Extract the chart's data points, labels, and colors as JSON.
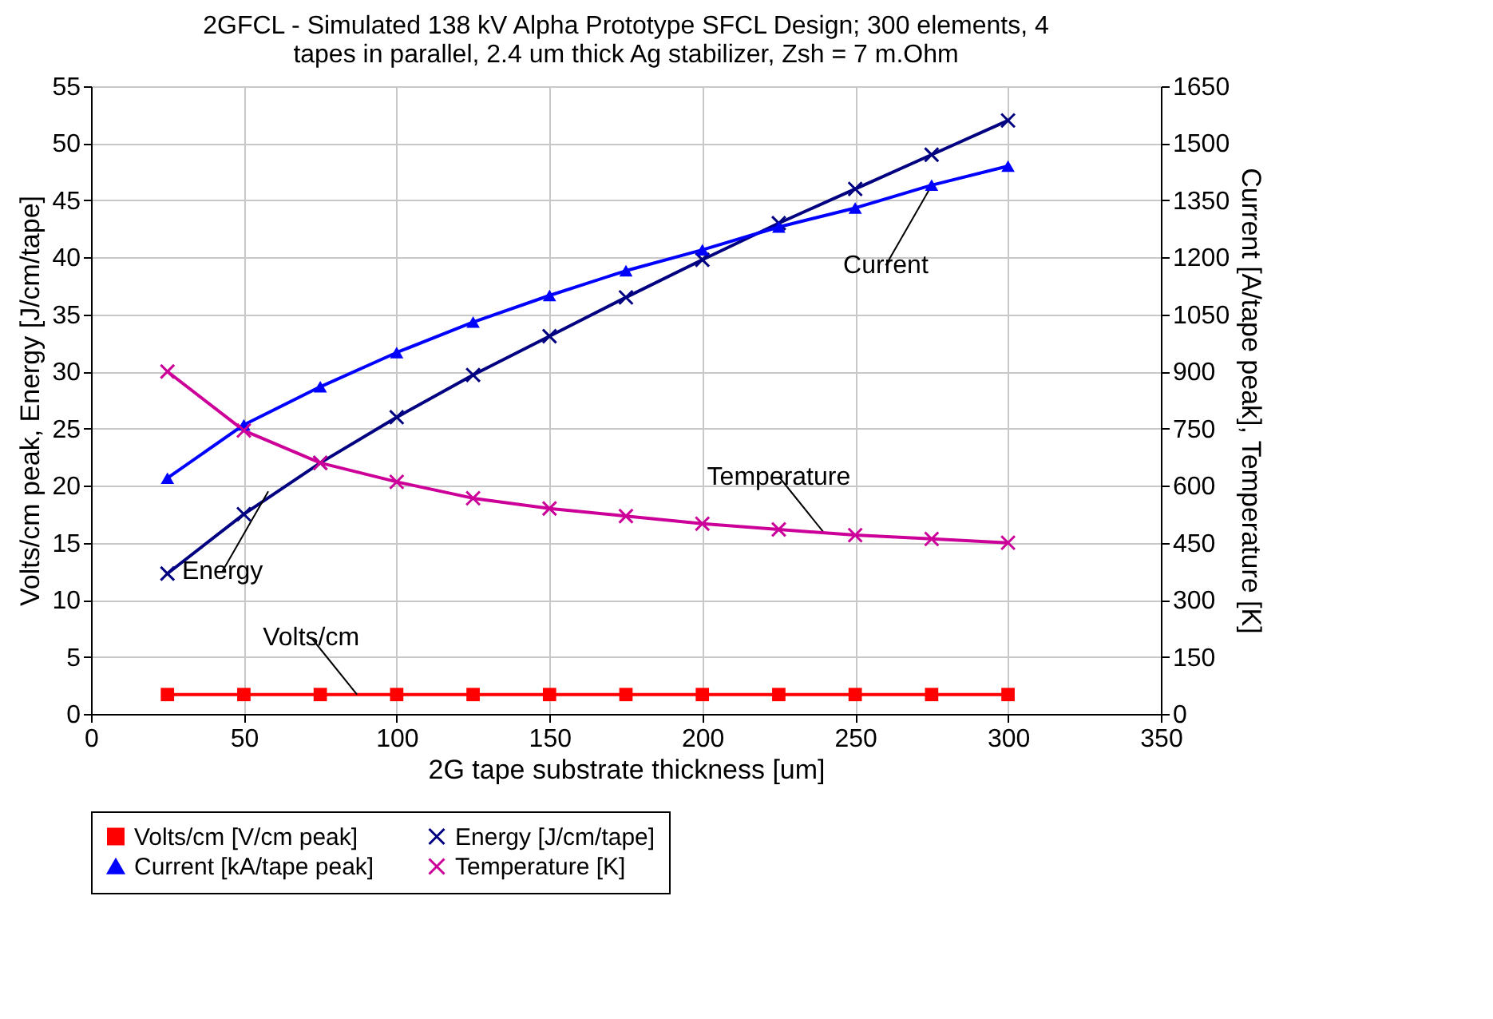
{
  "chart_data": {
    "type": "line",
    "title": [
      "2GFCL - Simulated 138 kV Alpha Prototype SFCL Design; 300 elements, 4",
      "tapes in parallel, 2.4 um thick Ag stabilizer,  Zsh = 7 m.Ohm"
    ],
    "xlabel": "2G tape substrate thickness [um]",
    "ylabel": "Volts/cm peak, Energy [J/cm/tape]",
    "y2label": "Current [A/tape peak], Temperature [K]",
    "x": [
      25,
      50,
      75,
      100,
      125,
      150,
      175,
      200,
      225,
      250,
      275,
      300
    ],
    "series": [
      {
        "name": "Volts/cm [V/cm peak]",
        "color": "#ff0000",
        "marker": "square",
        "values": [
          1.7,
          1.7,
          1.7,
          1.7,
          1.7,
          1.7,
          1.7,
          1.7,
          1.7,
          1.7,
          1.7,
          1.7
        ]
      },
      {
        "name": "Energy [J/cm/tape]",
        "color": "#000080",
        "marker": "cross",
        "values": [
          12.3,
          17.5,
          22,
          26,
          29.7,
          33.1,
          36.5,
          39.8,
          43,
          46,
          49,
          52
        ]
      },
      {
        "name": "Current [kA/tape peak]",
        "color": "#0000ff",
        "marker": "triangle",
        "axis": "y2",
        "values": [
          620,
          760,
          860,
          950,
          1030,
          1100,
          1165,
          1220,
          1280,
          1330,
          1390,
          1440
        ]
      },
      {
        "name": "Temperature [K]",
        "color": "#cc0099",
        "marker": "cross",
        "axis": "y2",
        "values": [
          900,
          745,
          660,
          610,
          567,
          540,
          520,
          500,
          485,
          470,
          460,
          450
        ]
      }
    ],
    "xlim": [
      0,
      350
    ],
    "xticks": [
      0,
      50,
      100,
      150,
      200,
      250,
      300,
      350
    ],
    "ylim": [
      0,
      55
    ],
    "yticks": [
      0,
      5,
      10,
      15,
      20,
      25,
      30,
      35,
      40,
      45,
      50,
      55
    ],
    "y2lim": [
      0,
      1650
    ],
    "y2ticks": [
      0,
      150,
      300,
      450,
      600,
      750,
      900,
      1050,
      1200,
      1350,
      1500,
      1650
    ],
    "annotations": [
      {
        "text": "Energy",
        "x": 58,
        "y": 19.5
      },
      {
        "text": "Volts/cm",
        "x": 87,
        "y": 1.7
      },
      {
        "text": "Current",
        "x": 275,
        "y": 46.3
      },
      {
        "text": "Temperature",
        "x": 240,
        "y": 15.8
      }
    ],
    "grid": true,
    "legend": "bottom"
  }
}
